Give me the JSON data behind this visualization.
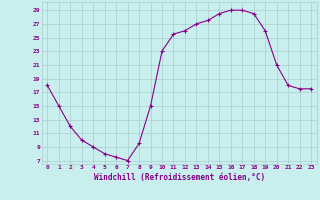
{
  "x": [
    0,
    1,
    2,
    3,
    4,
    5,
    6,
    7,
    8,
    9,
    10,
    11,
    12,
    13,
    14,
    15,
    16,
    17,
    18,
    19,
    20,
    21,
    22,
    23
  ],
  "y": [
    18,
    15,
    12,
    10,
    9,
    8,
    7.5,
    7,
    9.5,
    15,
    23,
    25.5,
    26,
    27,
    27.5,
    28.5,
    29,
    29,
    28.5,
    26,
    21,
    18,
    17.5,
    17.5
  ],
  "line_color": "#880088",
  "marker": "+",
  "bg_color": "#c8eeee",
  "grid_color": "#aacccc",
  "xlabel": "Windchill (Refroidissement éolien,°C)",
  "xlabel_color": "#880088",
  "tick_color": "#880088",
  "yticks": [
    7,
    9,
    11,
    13,
    15,
    17,
    19,
    21,
    23,
    25,
    27,
    29
  ],
  "xtick_labels": [
    "0",
    "1",
    "2",
    "3",
    "4",
    "5",
    "6",
    "7",
    "8",
    "9",
    "10",
    "11",
    "12",
    "13",
    "14",
    "15",
    "16",
    "17",
    "18",
    "19",
    "20",
    "21",
    "22",
    "23"
  ],
  "ylim": [
    6.5,
    30.2
  ],
  "xlim": [
    -0.5,
    23.5
  ]
}
